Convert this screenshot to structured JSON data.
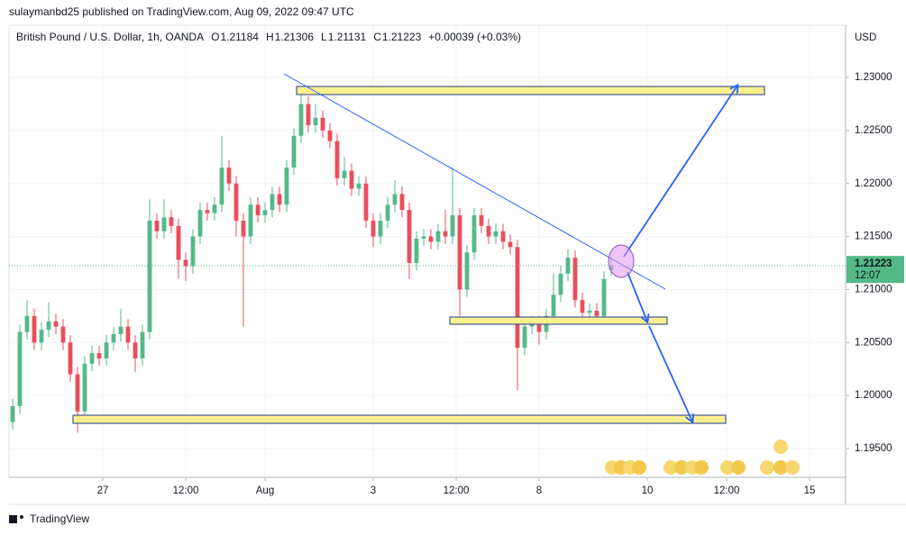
{
  "header": {
    "published": "sulaymanbd25 published on TradingView.com, Aug 09, 2022 09:47 UTC",
    "brand": "TradingView"
  },
  "chart_data": {
    "type": "candlestick",
    "symbol": "British Pound / U.S. Dollar, 1h, OANDA",
    "ohlc_info": [
      {
        "key": "O",
        "value": "1.21184"
      },
      {
        "key": "H",
        "value": "1.21306"
      },
      {
        "key": "L",
        "value": "1.21131"
      },
      {
        "key": "C",
        "value": "1.21223"
      }
    ],
    "change": "+0.00039 (+0.03%)",
    "currency": "USD",
    "countdown": "12:07",
    "up_color": "#53b987",
    "down_color": "#eb4d5c",
    "x": [
      0,
      1,
      2,
      3,
      4,
      5,
      6,
      7,
      8,
      9,
      10,
      11,
      12,
      13,
      14,
      15,
      16,
      17,
      18,
      19,
      20,
      21,
      22,
      23,
      24,
      25,
      26,
      27,
      28,
      29,
      30,
      31,
      32,
      33,
      34,
      35,
      36,
      37,
      38,
      39,
      40,
      41,
      42,
      43,
      44,
      45,
      46,
      47,
      48,
      49,
      50,
      51,
      52,
      53,
      54,
      55,
      56,
      57,
      58,
      59,
      60,
      61,
      62,
      63,
      64,
      65,
      66,
      67,
      68,
      69,
      70,
      71,
      72,
      73,
      74,
      75,
      76,
      77,
      78,
      79,
      80,
      81,
      82,
      83
    ],
    "open": [
      1.1975,
      1.199,
      1.206,
      1.2075,
      1.205,
      1.2062,
      1.207,
      1.2065,
      1.205,
      1.202,
      1.1985,
      1.203,
      1.204,
      1.2035,
      1.205,
      1.2058,
      1.2065,
      1.205,
      1.2035,
      1.206,
      1.2165,
      1.2155,
      1.2168,
      1.216,
      1.2128,
      1.2122,
      1.215,
      1.2175,
      1.2172,
      1.218,
      1.2215,
      1.22,
      1.2165,
      1.215,
      1.218,
      1.217,
      1.2175,
      1.219,
      1.218,
      1.2215,
      1.2245,
      1.2275,
      1.2255,
      1.2262,
      1.225,
      1.224,
      1.2205,
      1.2212,
      1.2195,
      1.22,
      1.2165,
      1.215,
      1.2165,
      1.218,
      1.219,
      1.2175,
      1.2125,
      1.2148,
      1.215,
      1.2145,
      1.2155,
      1.215,
      1.217,
      1.21,
      1.2135,
      1.217,
      1.216,
      1.215,
      1.2155,
      1.2145,
      1.214,
      1.2045,
      1.2065,
      1.2068,
      1.206,
      1.2075,
      1.2095,
      1.2115,
      1.213,
      1.209,
      1.2078,
      1.208,
      1.2075,
      1.21184
    ],
    "high": [
      1.1997,
      1.2067,
      1.209,
      1.2082,
      1.2069,
      1.2088,
      1.2077,
      1.2072,
      1.2057,
      1.2027,
      1.2037,
      1.2047,
      1.2047,
      1.2057,
      1.2065,
      1.2082,
      1.2072,
      1.2057,
      1.2067,
      1.2185,
      1.2172,
      1.2185,
      1.2175,
      1.2167,
      1.2135,
      1.2157,
      1.2182,
      1.2182,
      1.2187,
      1.2245,
      1.2222,
      1.2207,
      1.2172,
      1.2187,
      1.2187,
      1.2182,
      1.2197,
      1.2197,
      1.2222,
      1.2252,
      1.229,
      1.2282,
      1.2275,
      1.2269,
      1.2257,
      1.2247,
      1.2225,
      1.2219,
      1.2207,
      1.2207,
      1.2172,
      1.2172,
      1.2187,
      1.2203,
      1.2197,
      1.2182,
      1.2155,
      1.2157,
      1.2157,
      1.2162,
      1.2175,
      1.2215,
      1.2177,
      1.2142,
      1.2177,
      1.2177,
      1.2167,
      1.2162,
      1.2162,
      1.2152,
      1.2147,
      1.2072,
      1.2075,
      1.2075,
      1.2082,
      1.2115,
      1.2122,
      1.2138,
      1.2137,
      1.2097,
      1.2087,
      1.2087,
      1.2117,
      1.21306
    ],
    "low": [
      1.1968,
      1.1983,
      1.2053,
      1.2043,
      1.2043,
      1.2055,
      1.2058,
      1.2043,
      1.2013,
      1.1965,
      1.1978,
      1.2023,
      1.2028,
      1.2028,
      1.2043,
      1.2051,
      1.2043,
      1.2022,
      1.2028,
      1.2053,
      1.2148,
      1.2148,
      1.2153,
      1.211,
      1.2108,
      1.2115,
      1.2143,
      1.2165,
      1.2165,
      1.2173,
      1.2193,
      1.215,
      1.2065,
      1.2143,
      1.2163,
      1.2163,
      1.2168,
      1.2173,
      1.2173,
      1.2208,
      1.2238,
      1.2248,
      1.2248,
      1.2243,
      1.2233,
      1.2198,
      1.2198,
      1.2188,
      1.2188,
      1.2158,
      1.214,
      1.2143,
      1.2158,
      1.2173,
      1.2168,
      1.211,
      1.2118,
      1.2141,
      1.2138,
      1.2138,
      1.2143,
      1.2143,
      1.2075,
      1.2093,
      1.2128,
      1.2153,
      1.2143,
      1.2143,
      1.2138,
      1.2133,
      1.2005,
      1.2038,
      1.2058,
      1.2048,
      1.2053,
      1.2068,
      1.2088,
      1.2108,
      1.2083,
      1.2068,
      1.2071,
      1.2068,
      1.2068,
      1.21131
    ],
    "close": [
      1.199,
      1.206,
      1.2075,
      1.205,
      1.2062,
      1.207,
      1.2065,
      1.205,
      1.202,
      1.1985,
      1.203,
      1.204,
      1.2035,
      1.205,
      1.2058,
      1.2065,
      1.205,
      1.2035,
      1.206,
      1.2165,
      1.2155,
      1.2168,
      1.216,
      1.2128,
      1.2122,
      1.215,
      1.2175,
      1.2172,
      1.218,
      1.2215,
      1.22,
      1.2165,
      1.215,
      1.218,
      1.217,
      1.2175,
      1.219,
      1.218,
      1.2215,
      1.2245,
      1.2275,
      1.2255,
      1.2262,
      1.225,
      1.224,
      1.2205,
      1.2212,
      1.2195,
      1.22,
      1.2165,
      1.215,
      1.2165,
      1.218,
      1.219,
      1.2175,
      1.2125,
      1.2148,
      1.215,
      1.2145,
      1.2155,
      1.215,
      1.217,
      1.21,
      1.2135,
      1.217,
      1.216,
      1.215,
      1.2155,
      1.2145,
      1.214,
      1.2045,
      1.2065,
      1.2068,
      1.206,
      1.2075,
      1.2095,
      1.2115,
      1.213,
      1.209,
      1.2078,
      1.208,
      1.2075,
      1.211,
      1.21223
    ],
    "xlim": [
      -0.5,
      115.5
    ],
    "xticks": [
      {
        "value": 12.5,
        "label": "27"
      },
      {
        "value": 24,
        "label": "12:00"
      },
      {
        "value": 35,
        "label": "Aug"
      },
      {
        "value": 50,
        "label": "3"
      },
      {
        "value": 61.5,
        "label": "12:00"
      },
      {
        "value": 73,
        "label": "8"
      },
      {
        "value": 88,
        "label": "10"
      },
      {
        "value": 99,
        "label": "12:00"
      },
      {
        "value": 110.5,
        "label": "15"
      }
    ],
    "ylim": [
      1.19228,
      1.23493
    ],
    "yticks": [
      {
        "value": 1.195,
        "label": "1.19500"
      },
      {
        "value": 1.2,
        "label": "1.20000"
      },
      {
        "value": 1.205,
        "label": "1.20500"
      },
      {
        "value": 1.21,
        "label": "1.21000"
      },
      {
        "value": 1.215,
        "label": "1.21500"
      },
      {
        "value": 1.22,
        "label": "1.22000"
      },
      {
        "value": 1.225,
        "label": "1.22500"
      },
      {
        "value": 1.23,
        "label": "1.23000"
      }
    ],
    "grid": true
  }
}
